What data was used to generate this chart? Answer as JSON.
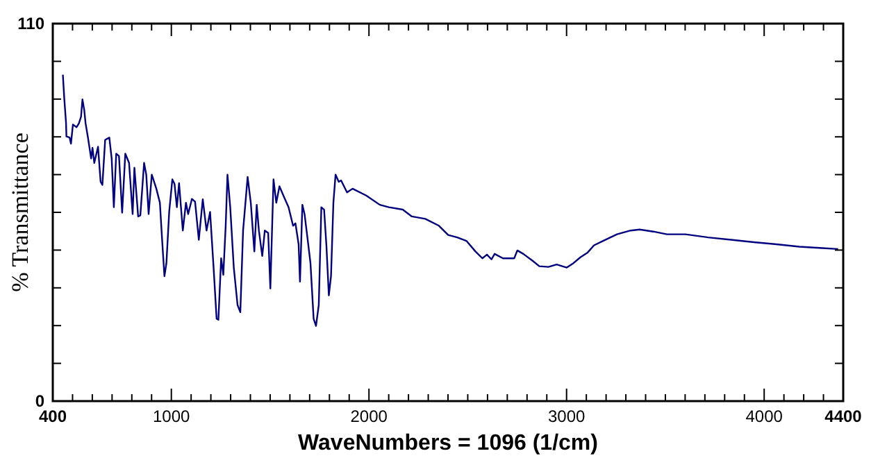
{
  "chart_data": {
    "type": "line",
    "xlabel": "WaveNumbers = 1096 (1/cm)",
    "ylabel": "% Transmittance",
    "xlim": [
      400,
      4400
    ],
    "ylim": [
      0,
      110
    ],
    "xticks": [
      400,
      {
        "value": 500,
        "label": null
      },
      {
        "value": 600,
        "label": null
      },
      {
        "value": 700,
        "label": null
      },
      {
        "value": 800,
        "label": null
      },
      {
        "value": 900,
        "label": null
      },
      1000,
      {
        "value": 1100,
        "label": null
      },
      {
        "value": 1200,
        "label": null
      },
      {
        "value": 1300,
        "label": null
      },
      {
        "value": 1400,
        "label": null
      },
      {
        "value": 1500,
        "label": null
      },
      {
        "value": 1600,
        "label": null
      },
      {
        "value": 1700,
        "label": null
      },
      {
        "value": 1800,
        "label": null
      },
      {
        "value": 1900,
        "label": null
      },
      2000,
      {
        "value": 2100,
        "label": null
      },
      {
        "value": 2200,
        "label": null
      },
      {
        "value": 2300,
        "label": null
      },
      {
        "value": 2400,
        "label": null
      },
      {
        "value": 2500,
        "label": null
      },
      {
        "value": 2600,
        "label": null
      },
      {
        "value": 2700,
        "label": null
      },
      {
        "value": 2800,
        "label": null
      },
      {
        "value": 2900,
        "label": null
      },
      3000,
      {
        "value": 3100,
        "label": null
      },
      {
        "value": 3200,
        "label": null
      },
      {
        "value": 3300,
        "label": null
      },
      {
        "value": 3400,
        "label": null
      },
      {
        "value": 3500,
        "label": null
      },
      {
        "value": 3600,
        "label": null
      },
      {
        "value": 3700,
        "label": null
      },
      {
        "value": 3800,
        "label": null
      },
      {
        "value": 3900,
        "label": null
      },
      4000,
      {
        "value": 4100,
        "label": null
      },
      {
        "value": 4200,
        "label": null
      },
      {
        "value": 4300,
        "label": null
      },
      4400
    ],
    "yticks": [
      0,
      {
        "value": 11,
        "label": null
      },
      {
        "value": 22,
        "label": null
      },
      {
        "value": 33,
        "label": null
      },
      {
        "value": 44,
        "label": null
      },
      {
        "value": 55,
        "label": null
      },
      {
        "value": 66,
        "label": null
      },
      {
        "value": 77,
        "label": null
      },
      {
        "value": 88,
        "label": null
      },
      {
        "value": 99,
        "label": null
      },
      110
    ],
    "grid": false,
    "marker": "none",
    "line_style": "solid",
    "series": [
      {
        "color": "#000080",
        "x": [
          451,
          458,
          467,
          469,
          485,
          492,
          502,
          520,
          532,
          543,
          550,
          559,
          566,
          578,
          594,
          601,
          610,
          629,
          642,
          651,
          665,
          686,
          698,
          709,
          721,
          735,
          751,
          767,
          786,
          804,
          813,
          832,
          843,
          862,
          873,
          885,
          901,
          924,
          942,
          954,
          965,
          975,
          989,
          1005,
          1016,
          1028,
          1039,
          1058,
          1074,
          1085,
          1104,
          1120,
          1139,
          1159,
          1178,
          1196,
          1213,
          1229,
          1238,
          1252,
          1263,
          1275,
          1284,
          1298,
          1316,
          1335,
          1349,
          1363,
          1386,
          1402,
          1420,
          1432,
          1443,
          1460,
          1473,
          1490,
          1501,
          1517,
          1531,
          1547,
          1570,
          1593,
          1616,
          1628,
          1644,
          1651,
          1663,
          1674,
          1690,
          1704,
          1720,
          1732,
          1746,
          1759,
          1773,
          1785,
          1797,
          1808,
          1820,
          1831,
          1847,
          1859,
          1889,
          1917,
          1986,
          2055,
          2101,
          2171,
          2217,
          2285,
          2354,
          2401,
          2447,
          2493,
          2539,
          2574,
          2597,
          2620,
          2636,
          2678,
          2735,
          2751,
          2781,
          2828,
          2862,
          2908,
          2950,
          3001,
          3035,
          3070,
          3105,
          3139,
          3185,
          3255,
          3324,
          3370,
          3439,
          3508,
          3601,
          3716,
          3832,
          3947,
          4062,
          4178,
          4293,
          4374
        ],
        "values": [
          95.1,
          88.3,
          81.1,
          77.1,
          76.8,
          75.0,
          80.6,
          79.8,
          80.9,
          82.9,
          87.9,
          84.9,
          80.9,
          76.8,
          70.7,
          73.8,
          69.4,
          74.1,
          63.9,
          63.0,
          76.1,
          76.8,
          70.7,
          56.5,
          72.1,
          71.4,
          54.9,
          72.1,
          69.4,
          54.5,
          68.0,
          53.8,
          54.1,
          69.4,
          66.0,
          54.5,
          66.0,
          61.9,
          57.8,
          46.3,
          36.4,
          40.2,
          55.1,
          64.6,
          63.3,
          56.5,
          63.5,
          49.7,
          57.8,
          54.5,
          58.9,
          58.1,
          47.0,
          58.8,
          49.7,
          55.1,
          39.6,
          24.0,
          23.7,
          41.6,
          36.8,
          51.1,
          66.0,
          56.5,
          38.9,
          28.0,
          25.9,
          49.7,
          65.3,
          57.8,
          43.6,
          57.2,
          49.7,
          42.3,
          49.7,
          49.0,
          32.8,
          64.6,
          57.8,
          62.6,
          59.5,
          56.5,
          51.1,
          51.8,
          45.7,
          34.8,
          57.2,
          54.5,
          47.0,
          40.2,
          24.0,
          21.9,
          28.0,
          56.5,
          55.8,
          45.0,
          30.8,
          36.4,
          57.8,
          66.0,
          63.9,
          64.3,
          60.8,
          61.9,
          59.9,
          57.2,
          56.5,
          55.8,
          53.8,
          53.1,
          51.1,
          48.4,
          47.7,
          46.7,
          43.6,
          41.6,
          42.7,
          41.3,
          42.9,
          41.6,
          41.6,
          43.9,
          42.9,
          40.9,
          39.3,
          39.1,
          39.8,
          38.9,
          40.2,
          41.9,
          43.2,
          45.4,
          46.7,
          48.6,
          49.7,
          50.0,
          49.4,
          48.6,
          48.6,
          47.7,
          47.0,
          46.3,
          45.7,
          45.0,
          44.6,
          44.3
        ]
      }
    ]
  }
}
